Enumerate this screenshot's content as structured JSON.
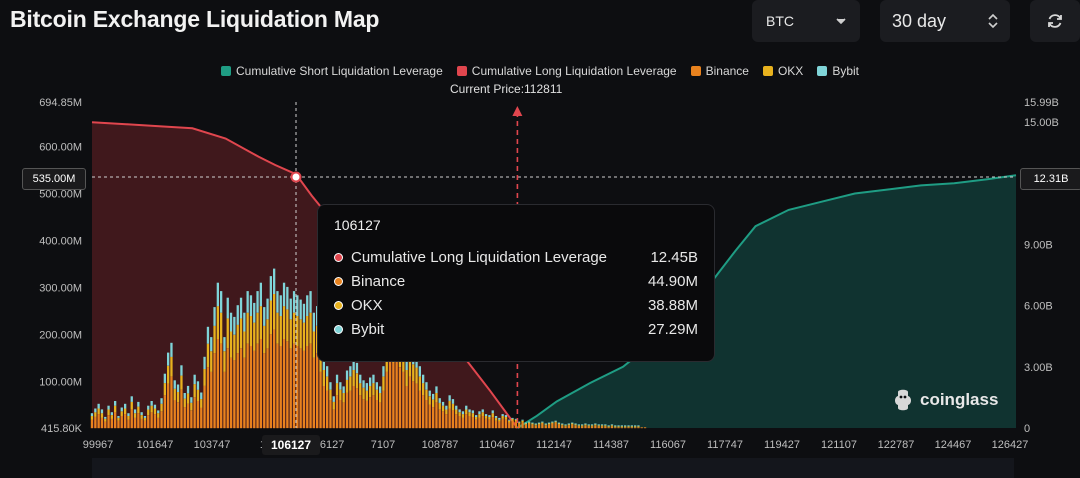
{
  "header": {
    "title": "Bitcoin Exchange Liquidation Map",
    "coin_select": "BTC",
    "range_select": "30 day"
  },
  "legend": [
    {
      "label": "Cumulative Short Liquidation Leverage",
      "color": "#1f9d84"
    },
    {
      "label": "Cumulative Long Liquidation Leverage",
      "color": "#e0464e"
    },
    {
      "label": "Binance",
      "color": "#e8821e"
    },
    {
      "label": "OKX",
      "color": "#e8b21e"
    },
    {
      "label": "Bybit",
      "color": "#7fd4d8"
    }
  ],
  "current_price_label": "Current Price:112811",
  "watermark": "coinglass",
  "crosshair": {
    "y_value": "535.00M",
    "y2_value": "12.31B",
    "x_value": "106127"
  },
  "tooltip": {
    "title": "106127",
    "rows": [
      {
        "label": "Cumulative Long Liquidation Leverage",
        "value": "12.45B",
        "color": "#e0464e"
      },
      {
        "label": "Binance",
        "value": "44.90M",
        "color": "#e8821e"
      },
      {
        "label": "OKX",
        "value": "38.88M",
        "color": "#e8b21e"
      },
      {
        "label": "Bybit",
        "value": "27.29M",
        "color": "#7fd4d8"
      }
    ]
  },
  "chart_data": {
    "type": "bar",
    "x_ticks": [
      "99967",
      "101647",
      "103747",
      "105",
      "106127",
      "7107",
      "108787",
      "110467",
      "112147",
      "114387",
      "116067",
      "117747",
      "119427",
      "121107",
      "122787",
      "124467",
      "126427"
    ],
    "x_range": [
      99967,
      127867
    ],
    "y_ticks_left": [
      "694.85M",
      "600.00M",
      "500.00M",
      "400.00M",
      "300.00M",
      "200.00M",
      "100.00M",
      "415.80K"
    ],
    "y_range_left": [
      415800,
      694850000
    ],
    "y_ticks_right": [
      "15.99B",
      "15.00B",
      "12.31B",
      "9.00B",
      "6.00B",
      "3.00B",
      "0"
    ],
    "y_range_right": [
      0,
      15990000000
    ],
    "current_price": 112811,
    "cumulative_long": {
      "x": [
        99967,
        101000,
        102000,
        103000,
        104000,
        105000,
        105500,
        106127,
        106600,
        107000,
        108000,
        110000,
        112000,
        112811
      ],
      "y": [
        15000000000.0,
        14900000000.0,
        14800000000.0,
        14700000000.0,
        14200000000.0,
        13300000000.0,
        12900000000.0,
        12450000000.0,
        11400000000.0,
        10600000000.0,
        8900000000.0,
        6000000000.0,
        1800000000.0,
        0
      ]
    },
    "cumulative_short": {
      "x": [
        112811,
        113400,
        114000,
        115000,
        116000,
        117000,
        118500,
        119400,
        120000,
        121000,
        122000,
        123000,
        124000,
        125000,
        126000,
        127000,
        127867
      ],
      "y": [
        0,
        600000000.0,
        1300000000.0,
        2200000000.0,
        3000000000.0,
        4300000000.0,
        6800000000.0,
        8700000000.0,
        9900000000.0,
        10700000000.0,
        11100000000.0,
        11500000000.0,
        11700000000.0,
        11900000000.0,
        12000000000.0,
        12200000000.0,
        12400000000.0
      ]
    },
    "bars": {
      "start": 99967,
      "step": 100,
      "series": [
        {
          "name": "Binance",
          "values": [
            18,
            24,
            30,
            22,
            14,
            28,
            20,
            34,
            16,
            26,
            30,
            18,
            40,
            22,
            32,
            20,
            16,
            28,
            34,
            30,
            22,
            36,
            70,
            95,
            110,
            60,
            55,
            82,
            45,
            52,
            38,
            66,
            58,
            44,
            90,
            130,
            120,
            160,
            190,
            180,
            120,
            170,
            150,
            145,
            160,
            170,
            150,
            180,
            175,
            165,
            180,
            190,
            160,
            170,
            200,
            210,
            180,
            175,
            190,
            185,
            170,
            180,
            175,
            170,
            165,
            175,
            180,
            150,
            160,
            120,
            90,
            80,
            60,
            40,
            70,
            60,
            55,
            75,
            80,
            90,
            85,
            70,
            62,
            58,
            66,
            70,
            60,
            55,
            80,
            120,
            150,
            140,
            165,
            130,
            120,
            90,
            110,
            100,
            95,
            80,
            70,
            60,
            50,
            45,
            55,
            40,
            36,
            30,
            42,
            38,
            30,
            26,
            22,
            30,
            26,
            24,
            18,
            22,
            26,
            20,
            18,
            24,
            16,
            14,
            20,
            18,
            12,
            16,
            14,
            10,
            12,
            8,
            10,
            8,
            6,
            8,
            10,
            6,
            8,
            10,
            12,
            8,
            6,
            4,
            6,
            8,
            6,
            4,
            4,
            6,
            4,
            4,
            6,
            4,
            4,
            4,
            2,
            4,
            2,
            2,
            2,
            2,
            2,
            2,
            2,
            2,
            2,
            2
          ]
        },
        {
          "name": "OKX",
          "values": [
            8,
            10,
            12,
            10,
            6,
            12,
            8,
            14,
            6,
            10,
            12,
            8,
            16,
            10,
            14,
            8,
            6,
            12,
            14,
            12,
            10,
            16,
            26,
            38,
            42,
            24,
            22,
            30,
            18,
            22,
            16,
            28,
            24,
            18,
            36,
            50,
            44,
            58,
            70,
            66,
            44,
            64,
            56,
            54,
            60,
            64,
            56,
            66,
            64,
            60,
            66,
            70,
            58,
            62,
            72,
            76,
            66,
            64,
            70,
            68,
            62,
            66,
            64,
            62,
            60,
            64,
            66,
            56,
            58,
            44,
            34,
            30,
            22,
            16,
            26,
            22,
            20,
            28,
            30,
            34,
            32,
            26,
            24,
            22,
            24,
            26,
            22,
            20,
            30,
            44,
            56,
            52,
            60,
            48,
            44,
            34,
            40,
            36,
            34,
            30,
            26,
            22,
            18,
            16,
            20,
            14,
            12,
            10,
            16,
            14,
            10,
            8,
            8,
            10,
            8,
            8,
            6,
            8,
            8,
            6,
            6,
            8,
            6,
            4,
            6,
            6,
            4,
            4,
            4,
            2,
            4,
            2,
            2,
            2,
            2,
            2,
            2,
            2,
            2,
            2,
            2,
            2,
            2,
            2,
            2,
            2,
            2,
            2,
            2,
            2,
            2,
            2,
            2,
            2,
            2,
            2,
            2,
            2,
            2,
            2,
            2,
            2,
            2,
            2,
            2,
            2
          ]
        },
        {
          "name": "Bybit",
          "values": [
            6,
            8,
            10,
            8,
            4,
            8,
            6,
            10,
            4,
            8,
            10,
            6,
            12,
            8,
            10,
            6,
            4,
            8,
            10,
            8,
            6,
            12,
            20,
            28,
            30,
            18,
            16,
            22,
            12,
            16,
            12,
            20,
            18,
            14,
            26,
            36,
            30,
            40,
            50,
            46,
            30,
            44,
            40,
            38,
            42,
            44,
            40,
            46,
            44,
            42,
            46,
            50,
            40,
            44,
            52,
            54,
            46,
            44,
            50,
            48,
            44,
            46,
            44,
            42,
            40,
            44,
            46,
            40,
            42,
            30,
            24,
            22,
            16,
            12,
            18,
            16,
            14,
            20,
            22,
            24,
            22,
            18,
            16,
            16,
            18,
            18,
            16,
            14,
            22,
            30,
            40,
            36,
            42,
            34,
            30,
            24,
            28,
            26,
            24,
            22,
            18,
            16,
            12,
            12,
            14,
            10,
            8,
            8,
            12,
            10,
            8,
            6,
            6,
            8,
            6,
            6,
            4,
            6,
            6,
            4,
            4,
            6,
            4,
            4,
            4,
            4,
            2,
            2,
            2,
            2,
            2,
            2,
            2,
            2,
            2,
            2,
            2,
            2,
            2,
            2,
            2,
            2,
            2,
            2,
            2,
            2,
            2,
            2,
            2,
            2,
            2,
            2,
            2,
            2,
            2,
            2,
            2,
            2,
            2,
            2,
            2,
            2,
            2,
            2,
            2,
            2
          ]
        }
      ],
      "units": "millions"
    }
  }
}
